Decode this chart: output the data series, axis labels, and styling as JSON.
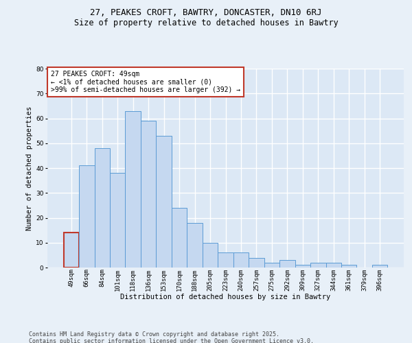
{
  "title1": "27, PEAKES CROFT, BAWTRY, DONCASTER, DN10 6RJ",
  "title2": "Size of property relative to detached houses in Bawtry",
  "xlabel": "Distribution of detached houses by size in Bawtry",
  "ylabel": "Number of detached properties",
  "categories": [
    "49sqm",
    "66sqm",
    "84sqm",
    "101sqm",
    "118sqm",
    "136sqm",
    "153sqm",
    "170sqm",
    "188sqm",
    "205sqm",
    "223sqm",
    "240sqm",
    "257sqm",
    "275sqm",
    "292sqm",
    "309sqm",
    "327sqm",
    "344sqm",
    "361sqm",
    "379sqm",
    "396sqm"
  ],
  "values": [
    14,
    41,
    48,
    38,
    63,
    59,
    53,
    24,
    18,
    10,
    6,
    6,
    4,
    2,
    3,
    1,
    2,
    2,
    1,
    0,
    1
  ],
  "bar_color": "#c5d8f0",
  "bar_edge_color": "#5b9bd5",
  "highlight_edge_color": "#c0392b",
  "ylim": [
    0,
    80
  ],
  "yticks": [
    0,
    10,
    20,
    30,
    40,
    50,
    60,
    70,
    80
  ],
  "background_color": "#dce8f5",
  "plot_bg_color": "#dce8f5",
  "fig_bg_color": "#e8f0f8",
  "grid_color": "#ffffff",
  "annotation_text": "27 PEAKES CROFT: 49sqm\n← <1% of detached houses are smaller (0)\n>99% of semi-detached houses are larger (392) →",
  "annotation_box_color": "#ffffff",
  "annotation_box_edge": "#c0392b",
  "footer_text": "Contains HM Land Registry data © Crown copyright and database right 2025.\nContains public sector information licensed under the Open Government Licence v3.0.",
  "title1_fontsize": 9,
  "title2_fontsize": 8.5,
  "tick_fontsize": 6.5,
  "ylabel_fontsize": 7.5,
  "xlabel_fontsize": 7.5,
  "annotation_fontsize": 7,
  "footer_fontsize": 6
}
